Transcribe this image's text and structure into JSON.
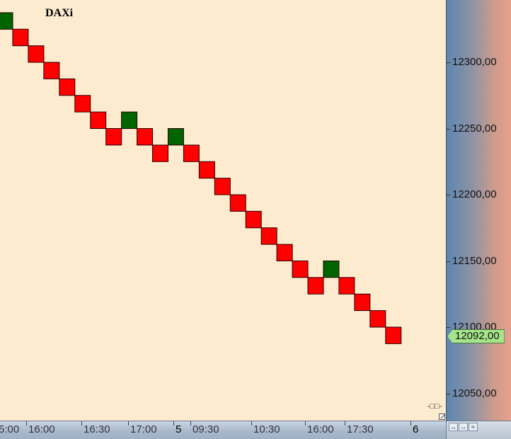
{
  "chart_data": {
    "type": "renko",
    "title": "DAXi",
    "brick_size": 12.5,
    "price_axis": {
      "ticks": [
        "12050,00",
        "12100,00",
        "12150,00",
        "12200,00",
        "12250,00",
        "12300,00"
      ],
      "last_price_label": "12092,00"
    },
    "time_axis": {
      "labels": [
        "5:00",
        "16:00",
        "16:30",
        "17:00",
        "5",
        "09:30",
        "10:30",
        "16:00",
        "17:30",
        "6"
      ]
    },
    "bricks": [
      {
        "dir": "up",
        "low": 12325.0,
        "high": 12337.5
      },
      {
        "dir": "down",
        "low": 12312.5,
        "high": 12325.0
      },
      {
        "dir": "down",
        "low": 12300.0,
        "high": 12312.5
      },
      {
        "dir": "down",
        "low": 12287.5,
        "high": 12300.0
      },
      {
        "dir": "down",
        "low": 12275.0,
        "high": 12287.5
      },
      {
        "dir": "down",
        "low": 12262.5,
        "high": 12275.0
      },
      {
        "dir": "down",
        "low": 12250.0,
        "high": 12262.5
      },
      {
        "dir": "down",
        "low": 12237.5,
        "high": 12250.0
      },
      {
        "dir": "up",
        "low": 12250.0,
        "high": 12262.5
      },
      {
        "dir": "down",
        "low": 12237.5,
        "high": 12250.0
      },
      {
        "dir": "down",
        "low": 12225.0,
        "high": 12237.5
      },
      {
        "dir": "up",
        "low": 12237.5,
        "high": 12250.0
      },
      {
        "dir": "down",
        "low": 12225.0,
        "high": 12237.5
      },
      {
        "dir": "down",
        "low": 12212.5,
        "high": 12225.0
      },
      {
        "dir": "down",
        "low": 12200.0,
        "high": 12212.5
      },
      {
        "dir": "down",
        "low": 12187.5,
        "high": 12200.0
      },
      {
        "dir": "down",
        "low": 12175.0,
        "high": 12187.5
      },
      {
        "dir": "down",
        "low": 12162.5,
        "high": 12175.0
      },
      {
        "dir": "down",
        "low": 12150.0,
        "high": 12162.5
      },
      {
        "dir": "down",
        "low": 12137.5,
        "high": 12150.0
      },
      {
        "dir": "down",
        "low": 12125.0,
        "high": 12137.5
      },
      {
        "dir": "up",
        "low": 12137.5,
        "high": 12150.0
      },
      {
        "dir": "down",
        "low": 12125.0,
        "high": 12137.5
      },
      {
        "dir": "down",
        "low": 12112.5,
        "high": 12125.0
      },
      {
        "dir": "down",
        "low": 12100.0,
        "high": 12112.5
      },
      {
        "dir": "down",
        "low": 12087.5,
        "high": 12100.0
      }
    ],
    "colors": {
      "up": "#006400",
      "down": "#ff0000",
      "border": "#2a0000",
      "background": "#fdebd0",
      "last_price_bg": "#a6e58a"
    },
    "grid": false
  }
}
